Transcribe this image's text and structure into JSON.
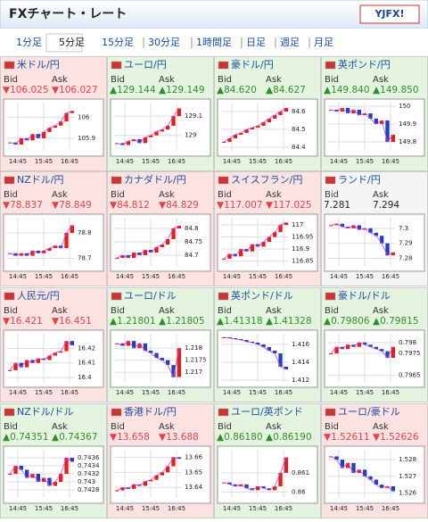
{
  "header": {
    "title": "FXチャート・レート",
    "logo": "YJFX!"
  },
  "tabs": [
    "1分足",
    "5分足",
    "15分足",
    "30分足",
    "1時間足",
    "日足",
    "週足",
    "月足"
  ],
  "selected_tab": 1,
  "bid_label": "Bid",
  "ask_label": "Ask",
  "time_labels": [
    "14:45",
    "15:45",
    "16:45"
  ],
  "pairs": [
    {
      "name": "米ドル/円",
      "bid": "▼106.025",
      "ask": "▼106.027",
      "trend": "down",
      "ylim": [
        105.84,
        106.07
      ],
      "yticks": [
        106,
        105.9
      ],
      "values": [
        105.88,
        105.87,
        105.9,
        105.89,
        105.92,
        105.9,
        105.93,
        105.95,
        105.96,
        105.98,
        106.02,
        106.03
      ]
    },
    {
      "name": "ユーロ/円",
      "bid": "▲129.144",
      "ask": "▲129.149",
      "trend": "up",
      "ylim": [
        128.92,
        129.17
      ],
      "yticks": [
        129.1,
        129
      ],
      "values": [
        128.96,
        128.95,
        128.97,
        128.98,
        128.96,
        128.99,
        129.0,
        129.02,
        129.03,
        129.05,
        129.1,
        129.14
      ]
    },
    {
      "name": "豪ドル/円",
      "bid": "▲84.620",
      "ask": "▲84.627",
      "trend": "up",
      "ylim": [
        84.38,
        84.65
      ],
      "yticks": [
        84.6,
        84.5,
        84.4
      ],
      "values": [
        84.43,
        84.45,
        84.47,
        84.48,
        84.5,
        84.51,
        84.52,
        84.54,
        84.56,
        84.58,
        84.6,
        84.62
      ]
    },
    {
      "name": "英ポンド/円",
      "bid": "▲149.840",
      "ask": "▲149.850",
      "trend": "up",
      "ylim": [
        149.75,
        150.02
      ],
      "yticks": [
        150,
        149.9,
        149.8
      ],
      "values": [
        149.98,
        149.97,
        149.99,
        149.96,
        149.98,
        149.95,
        149.96,
        149.93,
        149.9,
        149.92,
        149.8,
        149.84
      ]
    },
    {
      "name": "NZドル/円",
      "bid": "▼78.837",
      "ask": "▼78.849",
      "trend": "down",
      "ylim": [
        78.67,
        78.86
      ],
      "yticks": [
        78.8,
        78.7
      ],
      "values": [
        78.72,
        78.71,
        78.72,
        78.71,
        78.73,
        78.72,
        78.73,
        78.74,
        78.75,
        78.74,
        78.8,
        78.83
      ]
    },
    {
      "name": "カナダドル/円",
      "bid": "▼84.812",
      "ask": "▼84.829",
      "trend": "down",
      "ylim": [
        84.66,
        84.84
      ],
      "yticks": [
        84.8,
        84.75,
        84.7
      ],
      "values": [
        84.69,
        84.7,
        84.69,
        84.71,
        84.7,
        84.72,
        84.71,
        84.73,
        84.74,
        84.76,
        84.8,
        84.81
      ]
    },
    {
      "name": "スイスフラン/円",
      "bid": "▼117.007",
      "ask": "▼117.025",
      "trend": "down",
      "ylim": [
        116.83,
        117.03
      ],
      "yticks": [
        117,
        116.95,
        116.9,
        116.85
      ],
      "values": [
        116.86,
        116.88,
        116.87,
        116.9,
        116.89,
        116.92,
        116.91,
        116.93,
        116.95,
        116.97,
        117.0,
        117.01
      ]
    },
    {
      "name": "ランド/円",
      "bid": "7.281",
      "ask": "7.294",
      "trend": "flat",
      "ylim": [
        7.275,
        7.307
      ],
      "yticks": [
        7.3,
        7.29,
        7.28
      ],
      "values": [
        7.302,
        7.303,
        7.301,
        7.3,
        7.302,
        7.299,
        7.3,
        7.297,
        7.295,
        7.29,
        7.282,
        7.284
      ]
    },
    {
      "name": "人民元/円",
      "bid": "▼16.421",
      "ask": "▼16.451",
      "trend": "down",
      "ylim": [
        16.397,
        16.43
      ],
      "yticks": [
        16.42,
        16.41,
        16.4
      ],
      "values": [
        16.405,
        16.41,
        16.407,
        16.412,
        16.41,
        16.413,
        16.412,
        16.415,
        16.417,
        16.418,
        16.425,
        16.422
      ]
    },
    {
      "name": "ユーロ/ドル",
      "bid": "▲1.21801",
      "ask": "▲1.21805",
      "trend": "up",
      "ylim": [
        1.2166,
        1.2186
      ],
      "yticks": [
        1.218,
        1.2175,
        1.217
      ],
      "values": [
        1.2182,
        1.2181,
        1.2183,
        1.218,
        1.2182,
        1.2179,
        1.2178,
        1.2176,
        1.2175,
        1.2173,
        1.2168,
        1.218
      ]
    },
    {
      "name": "英ポンド/ドル",
      "bid": "▲1.41318",
      "ask": "▲1.41328",
      "trend": "up",
      "ylim": [
        1.4118,
        1.4172
      ],
      "yticks": [
        1.416,
        1.414,
        1.412
      ],
      "values": [
        1.4168,
        1.4167,
        1.4166,
        1.4165,
        1.4163,
        1.4162,
        1.416,
        1.4157,
        1.4153,
        1.415,
        1.4135,
        1.4132
      ]
    },
    {
      "name": "豪ドル/ドル",
      "bid": "▲0.79806",
      "ask": "▲0.79815",
      "trend": "up",
      "ylim": [
        0.7962,
        0.7984
      ],
      "yticks": [
        0.798,
        0.7975,
        0.7965
      ],
      "values": [
        0.7975,
        0.7978,
        0.7977,
        0.7979,
        0.7978,
        0.798,
        0.7979,
        0.7978,
        0.7977,
        0.7976,
        0.7973,
        0.7978
      ]
    },
    {
      "name": "NZドル/ドル",
      "bid": "▲0.74351",
      "ask": "▲0.74367",
      "trend": "up",
      "ylim": [
        0.7426,
        0.7438
      ],
      "yticks": [
        0.7436,
        0.7434,
        0.7432,
        0.743,
        0.7428
      ],
      "values": [
        0.7432,
        0.7434,
        0.7433,
        0.7431,
        0.7432,
        0.743,
        0.7431,
        0.7429,
        0.743,
        0.7432,
        0.7436,
        0.7435
      ]
    },
    {
      "name": "香港ドル/円",
      "bid": "▼13.658",
      "ask": "▼13.688",
      "trend": "down",
      "ylim": [
        13.633,
        13.665
      ],
      "yticks": [
        13.66,
        13.65,
        13.64
      ],
      "values": [
        13.638,
        13.64,
        13.639,
        13.642,
        13.641,
        13.644,
        13.645,
        13.648,
        13.65,
        13.654,
        13.66,
        13.659
      ]
    },
    {
      "name": "ユーロ/英ポンド",
      "bid": "▲0.86180",
      "ask": "▲0.86190",
      "trend": "up",
      "ylim": [
        0.8597,
        0.8622
      ],
      "yticks": [
        0.861,
        0.86
      ],
      "values": [
        0.8605,
        0.8604,
        0.8603,
        0.8604,
        0.8602,
        0.8601,
        0.8603,
        0.8602,
        0.8601,
        0.8603,
        0.861,
        0.8618
      ]
    },
    {
      "name": "ユーロ/豪ドル",
      "bid": "▼1.52611",
      "ask": "▼1.52626",
      "trend": "down",
      "ylim": [
        1.5257,
        1.5286
      ],
      "yticks": [
        1.528,
        1.527,
        1.526
      ],
      "values": [
        1.5282,
        1.528,
        1.5275,
        1.5278,
        1.5272,
        1.5274,
        1.527,
        1.5268,
        1.5265,
        1.5263,
        1.5264,
        1.5261
      ]
    }
  ]
}
